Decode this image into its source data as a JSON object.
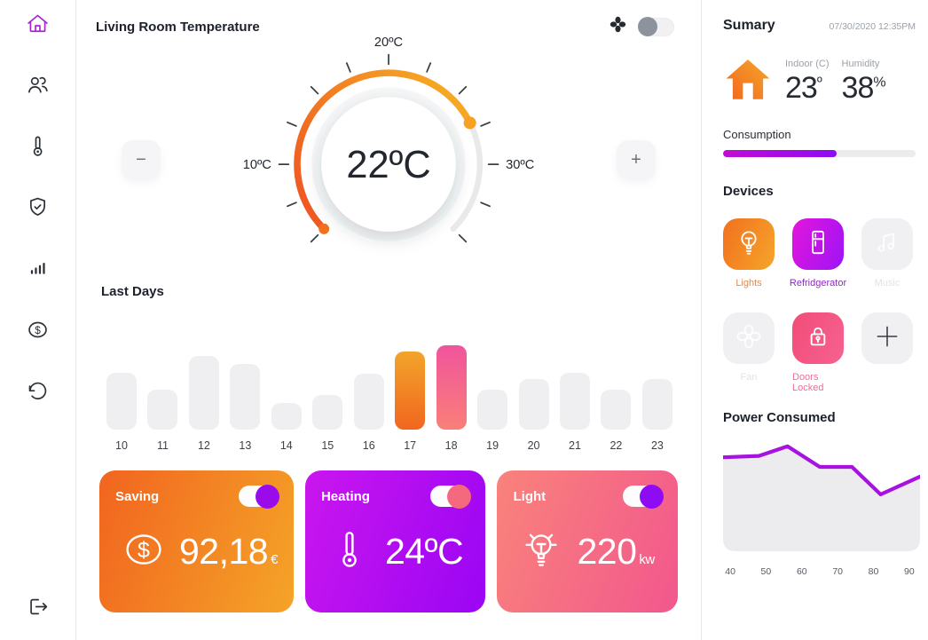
{
  "header": {
    "title": "Living Room Temperature"
  },
  "thermostat": {
    "value": "22ºC",
    "top_label": "20ºC",
    "left_label": "10ºC",
    "right_label": "30ºC",
    "decrease_label": "−",
    "increase_label": "+"
  },
  "last_days": {
    "title": "Last Days"
  },
  "cards": [
    {
      "label": "Saving",
      "value": "92,18",
      "unit": "€",
      "toggle_on": true
    },
    {
      "label": "Heating",
      "value": "24ºC",
      "unit": "",
      "toggle_on": true
    },
    {
      "label": "Light",
      "value": "220",
      "unit": "kw",
      "toggle_on": true
    }
  ],
  "summary": {
    "title": "Sumary",
    "datetime": "07/30/2020  12:35PM",
    "indoor_label": "Indoor (C)",
    "indoor_value": "23",
    "indoor_unit": "º",
    "humidity_label": "Humidity",
    "humidity_value": "38",
    "humidity_unit": "%",
    "consumption_label": "Consumption",
    "consumption_percent": 59
  },
  "devices": {
    "title": "Devices",
    "items": [
      {
        "label": "Lights",
        "state": "on",
        "color": "#f1701f"
      },
      {
        "label": "Refridgerator",
        "state": "on",
        "color": "#9d13f6"
      },
      {
        "label": "Music",
        "state": "off",
        "color": "#f0f0f2"
      },
      {
        "label": "Fan",
        "state": "off",
        "color": "#f0f0f2"
      },
      {
        "label": "Doors Locked",
        "state": "on",
        "color": "#f24c78"
      },
      {
        "label": "",
        "state": "add",
        "color": "#f0f0f2"
      }
    ]
  },
  "power": {
    "title": "Power Consumed"
  },
  "colors": {
    "accent_orange": "#f1661f",
    "accent_orange_light": "#f5a428",
    "accent_purple": "#9a05f4",
    "accent_magenta": "#ca16ee",
    "accent_pink": "#f2578d",
    "power_line": "#a712e0",
    "inactive_gray": "#f0f0f2",
    "sidebar_active": "#a528cf"
  },
  "chart_data": [
    {
      "type": "bar",
      "title": "Last Days",
      "categories": [
        "10",
        "11",
        "12",
        "13",
        "14",
        "15",
        "16",
        "17",
        "18",
        "19",
        "20",
        "21",
        "22",
        "23"
      ],
      "values": [
        67,
        47,
        87,
        78,
        32,
        41,
        66,
        93,
        100,
        47,
        60,
        67,
        47,
        60
      ],
      "highlight": {
        "17": "orange",
        "18": "pink"
      },
      "xlabel": "hour",
      "ylabel": "relative usage",
      "ylim": [
        0,
        100
      ],
      "grid": false
    },
    {
      "type": "line",
      "title": "Power Consumed",
      "x_labels": [
        40,
        50,
        60,
        70,
        80,
        90
      ],
      "points": [
        {
          "x": 38,
          "y": 62
        },
        {
          "x": 48,
          "y": 63
        },
        {
          "x": 56,
          "y": 70
        },
        {
          "x": 65,
          "y": 55
        },
        {
          "x": 74,
          "y": 55
        },
        {
          "x": 82,
          "y": 35
        },
        {
          "x": 93,
          "y": 48
        }
      ],
      "xlim": [
        38,
        93
      ],
      "ylim": [
        0,
        100
      ],
      "grid": false,
      "legend": "none"
    }
  ]
}
